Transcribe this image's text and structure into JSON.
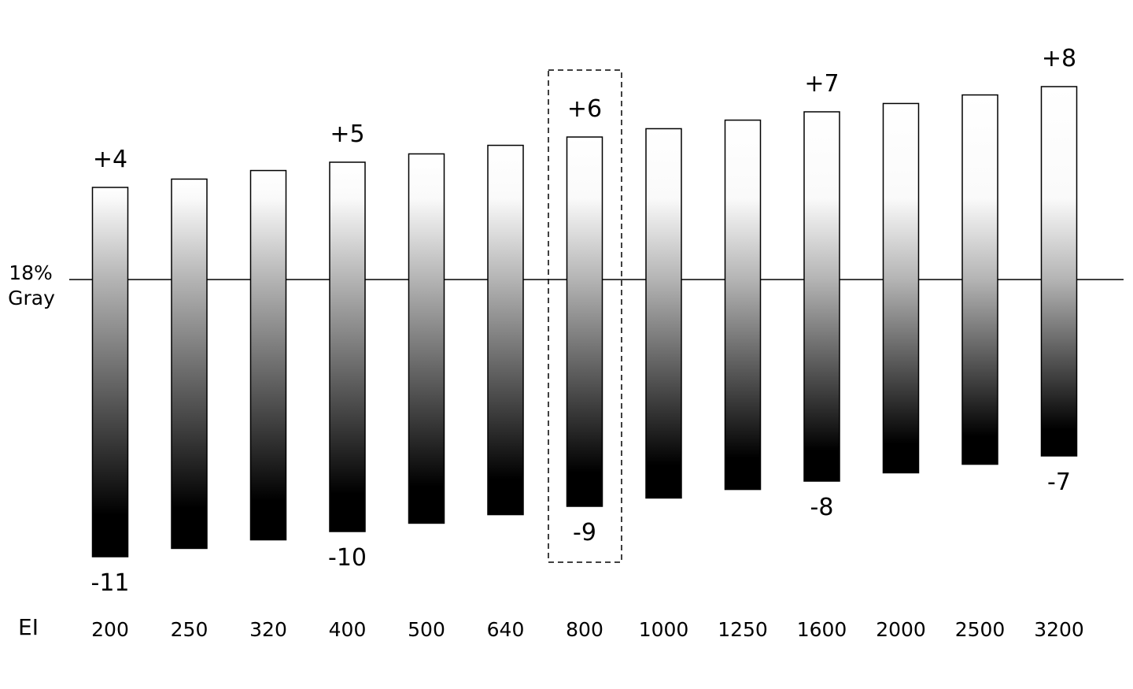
{
  "chart_data": {
    "type": "bar",
    "reference_label": [
      "18%",
      "Gray"
    ],
    "xlabel": "EI",
    "categories": [
      "200",
      "250",
      "320",
      "400",
      "500",
      "640",
      "800",
      "1000",
      "1250",
      "1600",
      "2000",
      "2500",
      "3200"
    ],
    "series": [
      {
        "values_over": [
          4,
          4.33,
          4.67,
          5,
          5.33,
          5.67,
          6,
          6.33,
          6.67,
          7,
          7.33,
          7.67,
          8
        ],
        "values_under": [
          -11,
          -10.67,
          -10.33,
          -10,
          -9.67,
          -9.33,
          -9,
          -8.67,
          -8.33,
          -8,
          -7.67,
          -7.33,
          -7
        ]
      }
    ],
    "data_labels": [
      {
        "category": "200",
        "over": "+4",
        "under": "-11"
      },
      {
        "category": "400",
        "over": "+5",
        "under": "-10"
      },
      {
        "category": "800",
        "over": "+6",
        "under": "-9"
      },
      {
        "category": "1600",
        "over": "+7",
        "under": "-8"
      },
      {
        "category": "3200",
        "over": "+8",
        "under": "-7"
      }
    ],
    "highlighted_category": "800",
    "gradient": "white at top to black at bottom, 18% gray at the reference line",
    "colors": {
      "bar_stroke": "#000000",
      "line": "#000000"
    }
  }
}
